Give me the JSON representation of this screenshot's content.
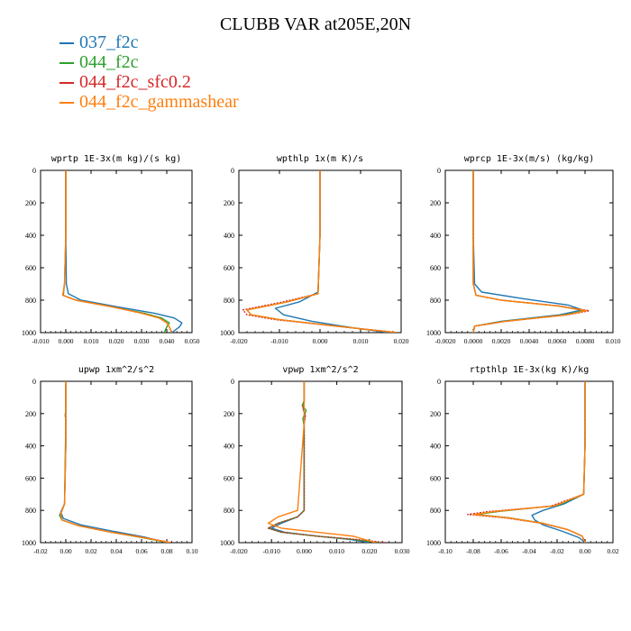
{
  "figure": {
    "title": "CLUBB VAR at205E,20N",
    "legend": [
      {
        "label": "037_f2c",
        "color": "#1f77b4"
      },
      {
        "label": "044_f2c",
        "color": "#2ca02c"
      },
      {
        "label": "044_f2c_sfc0.2",
        "color": "#d62728"
      },
      {
        "label": "044_f2c_gammashear",
        "color": "#ff7f0e"
      }
    ]
  },
  "chart_data": [
    {
      "type": "line",
      "title": "wprtp  1E-3x(m kg)/(s kg)",
      "xlim": [
        -0.01,
        0.05
      ],
      "ylim": [
        1000,
        0
      ],
      "xticks": [
        "-0.010",
        "0.000",
        "0.010",
        "0.020",
        "0.030",
        "0.040",
        "0.050"
      ],
      "xtick_values": [
        -0.01,
        0,
        0.01,
        0.02,
        0.03,
        0.04,
        0.05
      ],
      "yticks": [
        "0",
        "200",
        "400",
        "600",
        "800",
        "1000"
      ],
      "ytick_values": [
        0,
        200,
        400,
        600,
        800,
        1000
      ],
      "series": [
        {
          "name": "037_f2c",
          "color": "#1f77b4",
          "dash": false,
          "x": [
            0,
            0,
            0,
            0.0002,
            0.001,
            0.006,
            0.02,
            0.035,
            0.043,
            0.046,
            0.045,
            0.042
          ],
          "y": [
            0,
            200,
            400,
            700,
            760,
            800,
            840,
            880,
            910,
            940,
            965,
            1000
          ]
        },
        {
          "name": "044_f2c",
          "color": "#2ca02c",
          "dash": false,
          "x": [
            0,
            0,
            0,
            -0.0005,
            -0.001,
            0.004,
            0.018,
            0.031,
            0.038,
            0.041,
            0.04,
            0.039
          ],
          "y": [
            0,
            200,
            400,
            700,
            770,
            800,
            840,
            880,
            910,
            940,
            965,
            1000
          ]
        },
        {
          "name": "044_f2c_sfc0.2",
          "color": "#d62728",
          "dash": true,
          "x": [
            0,
            0,
            0,
            -0.0005,
            -0.0012,
            0.004,
            0.018,
            0.03,
            0.037,
            0.04,
            0.041,
            0.042
          ],
          "y": [
            0,
            200,
            400,
            700,
            770,
            800,
            840,
            880,
            910,
            940,
            965,
            1000
          ]
        },
        {
          "name": "044_f2c_gammashear",
          "color": "#ff7f0e",
          "dash": false,
          "x": [
            0,
            0,
            0,
            -0.0005,
            -0.0012,
            0.004,
            0.018,
            0.03,
            0.037,
            0.04,
            0.041,
            0.042
          ],
          "y": [
            0,
            200,
            400,
            700,
            770,
            800,
            840,
            880,
            910,
            940,
            965,
            1000
          ]
        }
      ]
    },
    {
      "type": "line",
      "title": "wpthlp  1x(m K)/s",
      "xlim": [
        -0.02,
        0.02
      ],
      "ylim": [
        1000,
        0
      ],
      "xticks": [
        "-0.020",
        "-0.010",
        "0.000",
        "0.010",
        "0.020"
      ],
      "xtick_values": [
        -0.02,
        -0.01,
        0,
        0.01,
        0.02
      ],
      "yticks": [
        "0",
        "200",
        "400",
        "600",
        "800",
        "1000"
      ],
      "ytick_values": [
        0,
        200,
        400,
        600,
        800,
        1000
      ],
      "series": [
        {
          "name": "037_f2c",
          "color": "#1f77b4",
          "dash": false,
          "x": [
            0,
            0,
            0,
            -0.0005,
            -0.005,
            -0.011,
            -0.009,
            -0.002,
            0.008,
            0.017
          ],
          "y": [
            0,
            200,
            400,
            750,
            810,
            850,
            890,
            930,
            970,
            1000
          ]
        },
        {
          "name": "044_f2c",
          "color": "#2ca02c",
          "dash": false,
          "x": [
            0,
            0,
            0,
            -0.0005,
            -0.008,
            -0.018,
            -0.017,
            -0.01,
            0.004,
            0.019
          ],
          "y": [
            0,
            200,
            400,
            760,
            810,
            860,
            890,
            920,
            960,
            1000
          ]
        },
        {
          "name": "044_f2c_sfc0.2",
          "color": "#d62728",
          "dash": true,
          "x": [
            0,
            0,
            0,
            -0.0005,
            -0.009,
            -0.019,
            -0.018,
            -0.011,
            0.004,
            0.019
          ],
          "y": [
            0,
            200,
            400,
            760,
            810,
            860,
            890,
            920,
            960,
            1000
          ]
        },
        {
          "name": "044_f2c_gammashear",
          "color": "#ff7f0e",
          "dash": false,
          "x": [
            0,
            0,
            0,
            -0.0005,
            -0.008,
            -0.018,
            -0.017,
            -0.01,
            0.004,
            0.019
          ],
          "y": [
            0,
            200,
            400,
            760,
            810,
            860,
            890,
            920,
            960,
            1000
          ]
        }
      ]
    },
    {
      "type": "line",
      "title": "wprcp  1E-3x(m/s) (kg/kg)",
      "xlim": [
        -0.002,
        0.01
      ],
      "ylim": [
        1000,
        0
      ],
      "xticks": [
        "-0.0020",
        "0.0000",
        "0.0020",
        "0.0040",
        "0.0060",
        "0.0080",
        "0.010"
      ],
      "xtick_values": [
        -0.002,
        0,
        0.002,
        0.004,
        0.006,
        0.008,
        0.01
      ],
      "yticks": [
        "0",
        "200",
        "400",
        "600",
        "800",
        "1000"
      ],
      "ytick_values": [
        0,
        200,
        400,
        600,
        800,
        1000
      ],
      "series": [
        {
          "name": "037_f2c",
          "color": "#1f77b4",
          "dash": false,
          "x": [
            0,
            0,
            0,
            0.0001,
            0.0006,
            0.0035,
            0.0068,
            0.0078,
            0.0062,
            0.002,
            0.0001,
            0
          ],
          "y": [
            0,
            200,
            400,
            700,
            750,
            790,
            830,
            860,
            890,
            930,
            960,
            1000
          ]
        },
        {
          "name": "044_f2c",
          "color": "#2ca02c",
          "dash": false,
          "x": [
            0,
            0,
            0,
            0,
            0.0002,
            0.002,
            0.006,
            0.008,
            0.0066,
            0.0022,
            0.0001,
            0
          ],
          "y": [
            0,
            200,
            400,
            700,
            770,
            800,
            835,
            865,
            890,
            930,
            960,
            1000
          ]
        },
        {
          "name": "044_f2c_sfc0.2",
          "color": "#d62728",
          "dash": true,
          "x": [
            0,
            0,
            0,
            0,
            0.0002,
            0.002,
            0.0061,
            0.0083,
            0.0068,
            0.0024,
            0.0001,
            0
          ],
          "y": [
            0,
            200,
            400,
            700,
            770,
            800,
            835,
            865,
            890,
            930,
            960,
            1000
          ]
        },
        {
          "name": "044_f2c_gammashear",
          "color": "#ff7f0e",
          "dash": false,
          "x": [
            0,
            0,
            0,
            0,
            0.0002,
            0.002,
            0.006,
            0.0081,
            0.0067,
            0.0023,
            0.0001,
            0
          ],
          "y": [
            0,
            200,
            400,
            700,
            770,
            800,
            835,
            865,
            890,
            930,
            960,
            1000
          ]
        }
      ]
    },
    {
      "type": "line",
      "title": "upwp  1xm^2/s^2",
      "xlim": [
        -0.02,
        0.1
      ],
      "ylim": [
        1000,
        0
      ],
      "xticks": [
        "-0.02",
        "0.00",
        "0.02",
        "0.04",
        "0.06",
        "0.08",
        "0.10"
      ],
      "xtick_values": [
        -0.02,
        0,
        0.02,
        0.04,
        0.06,
        0.08,
        0.1
      ],
      "yticks": [
        "0",
        "200",
        "400",
        "600",
        "800",
        "1000"
      ],
      "ytick_values": [
        0,
        200,
        400,
        600,
        800,
        1000
      ],
      "series": [
        {
          "name": "037_f2c",
          "color": "#1f77b4",
          "dash": false,
          "x": [
            0,
            0,
            0,
            -0.001,
            -0.004,
            -0.002,
            0.012,
            0.038,
            0.062,
            0.08
          ],
          "y": [
            0,
            200,
            400,
            760,
            810,
            850,
            890,
            930,
            965,
            1000
          ]
        },
        {
          "name": "044_f2c",
          "color": "#2ca02c",
          "dash": false,
          "x": [
            0,
            0,
            -0.0005,
            0,
            -0.001,
            -0.003,
            -0.005,
            -0.003,
            0.01,
            0.036,
            0.06,
            0.082
          ],
          "y": [
            0,
            180,
            210,
            240,
            760,
            800,
            830,
            860,
            895,
            935,
            968,
            1000
          ]
        },
        {
          "name": "044_f2c_sfc0.2",
          "color": "#d62728",
          "dash": true,
          "x": [
            0,
            0,
            0,
            -0.001,
            -0.004,
            -0.003,
            0.01,
            0.036,
            0.062,
            0.084
          ],
          "y": [
            0,
            200,
            400,
            760,
            820,
            860,
            895,
            935,
            968,
            1000
          ]
        },
        {
          "name": "044_f2c_gammashear",
          "color": "#ff7f0e",
          "dash": false,
          "x": [
            0,
            0,
            0,
            -0.001,
            -0.004,
            -0.003,
            0.01,
            0.036,
            0.061,
            0.083
          ],
          "y": [
            0,
            200,
            400,
            760,
            820,
            860,
            895,
            935,
            968,
            1000
          ]
        }
      ]
    },
    {
      "type": "line",
      "title": "vpwp  1xm^2/s^2",
      "xlim": [
        -0.02,
        0.03
      ],
      "ylim": [
        1000,
        0
      ],
      "xticks": [
        "-0.020",
        "-0.010",
        "0.000",
        "0.010",
        "0.020",
        "0.030"
      ],
      "xtick_values": [
        -0.02,
        -0.01,
        0,
        0.01,
        0.02,
        0.03
      ],
      "yticks": [
        "0",
        "200",
        "400",
        "600",
        "800",
        "1000"
      ],
      "ytick_values": [
        0,
        200,
        400,
        600,
        800,
        1000
      ],
      "series": [
        {
          "name": "037_f2c",
          "color": "#1f77b4",
          "dash": false,
          "x": [
            0,
            0,
            -0.0003,
            0.0003,
            0,
            0,
            -0.002,
            -0.007,
            -0.01,
            -0.006,
            0.004,
            0.014,
            0.02
          ],
          "y": [
            0,
            130,
            170,
            210,
            260,
            800,
            840,
            880,
            910,
            935,
            960,
            980,
            1000
          ]
        },
        {
          "name": "044_f2c",
          "color": "#2ca02c",
          "dash": false,
          "x": [
            0,
            0,
            -0.0006,
            0.0006,
            -0.0004,
            0,
            0,
            -0.002,
            -0.008,
            -0.011,
            -0.007,
            0.004,
            0.015,
            0.023
          ],
          "y": [
            0,
            120,
            150,
            180,
            230,
            280,
            800,
            840,
            880,
            910,
            935,
            960,
            980,
            1000
          ]
        },
        {
          "name": "044_f2c_sfc0.2",
          "color": "#d62728",
          "dash": true,
          "x": [
            0,
            0,
            -0.0004,
            0.0004,
            0,
            0,
            -0.002,
            -0.008,
            -0.011,
            -0.007,
            0.004,
            0.016,
            0.025
          ],
          "y": [
            0,
            130,
            170,
            210,
            260,
            800,
            840,
            880,
            910,
            935,
            960,
            980,
            1000
          ]
        },
        {
          "name": "044_f2c_gammashear",
          "color": "#ff7f0e",
          "dash": false,
          "x": [
            0,
            0,
            0,
            0,
            -0.002,
            -0.008,
            -0.011,
            -0.007,
            0.004,
            0.015,
            0.022
          ],
          "y": [
            0,
            130,
            210,
            260,
            800,
            840,
            880,
            910,
            935,
            960,
            1000
          ]
        }
      ]
    },
    {
      "type": "line",
      "title": "rtpthlp  1E-3x(kg K)/kg",
      "xlim": [
        -0.1,
        0.02
      ],
      "ylim": [
        1000,
        0
      ],
      "xticks": [
        "-0.10",
        "-0.08",
        "-0.06",
        "-0.04",
        "-0.02",
        "0.00",
        "0.02"
      ],
      "xtick_values": [
        -0.1,
        -0.08,
        -0.06,
        -0.04,
        -0.02,
        0,
        0.02
      ],
      "yticks": [
        "0",
        "200",
        "400",
        "600",
        "800",
        "1000"
      ],
      "ytick_values": [
        0,
        200,
        400,
        600,
        800,
        1000
      ],
      "series": [
        {
          "name": "037_f2c",
          "color": "#1f77b4",
          "dash": false,
          "x": [
            0,
            0,
            0,
            -0.001,
            -0.015,
            -0.03,
            -0.038,
            -0.036,
            -0.03,
            -0.016,
            -0.004,
            0
          ],
          "y": [
            0,
            200,
            400,
            700,
            760,
            800,
            830,
            860,
            890,
            930,
            970,
            1000
          ]
        },
        {
          "name": "044_f2c",
          "color": "#2ca02c",
          "dash": false,
          "x": [
            0,
            0,
            0,
            -0.001,
            -0.02,
            -0.06,
            -0.078,
            -0.055,
            -0.03,
            -0.012,
            -0.002,
            0
          ],
          "y": [
            0,
            200,
            400,
            700,
            770,
            805,
            825,
            845,
            880,
            920,
            960,
            1000
          ]
        },
        {
          "name": "044_f2c_sfc0.2",
          "color": "#d62728",
          "dash": true,
          "x": [
            0,
            0,
            0,
            -0.001,
            -0.025,
            -0.07,
            -0.084,
            -0.058,
            -0.031,
            -0.012,
            -0.002,
            0
          ],
          "y": [
            0,
            200,
            400,
            700,
            775,
            808,
            825,
            845,
            880,
            920,
            960,
            1000
          ]
        },
        {
          "name": "044_f2c_gammashear",
          "color": "#ff7f0e",
          "dash": false,
          "x": [
            0,
            0,
            0,
            -0.001,
            -0.022,
            -0.064,
            -0.08,
            -0.056,
            -0.03,
            -0.012,
            -0.002,
            0
          ],
          "y": [
            0,
            200,
            400,
            700,
            772,
            806,
            825,
            845,
            880,
            920,
            960,
            1000
          ]
        }
      ]
    }
  ]
}
